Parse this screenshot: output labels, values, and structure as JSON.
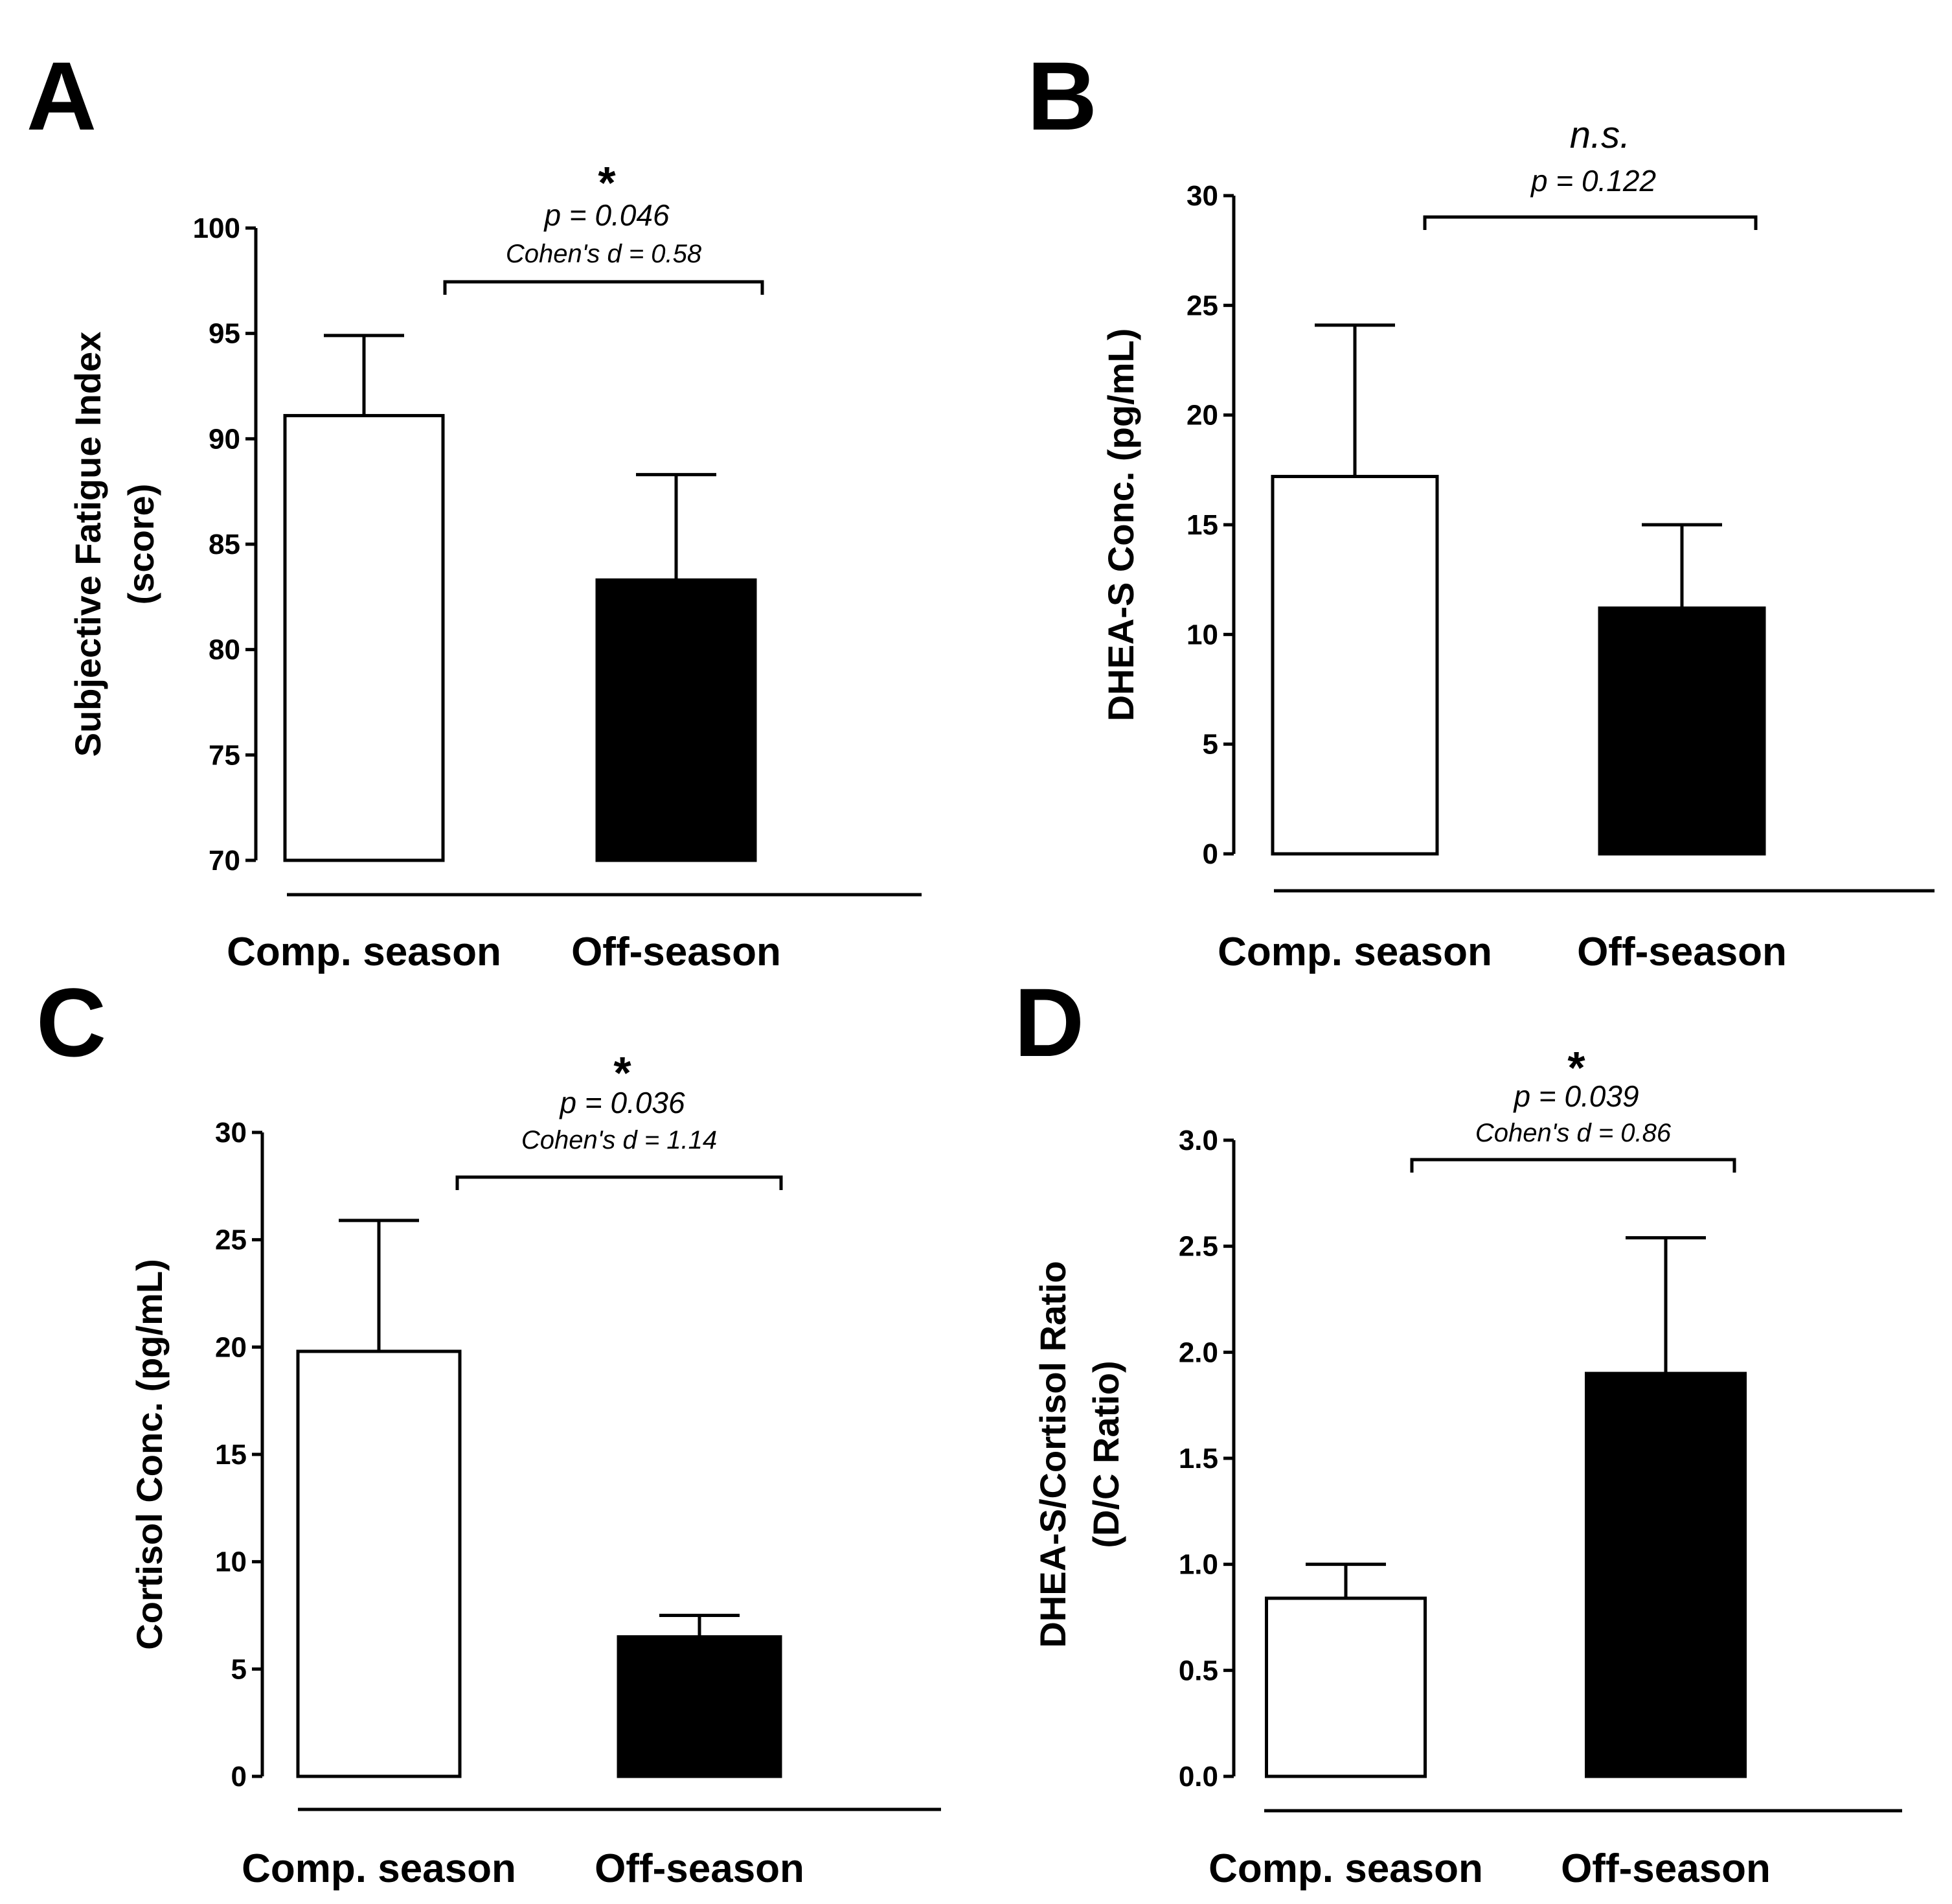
{
  "figure": {
    "colors": {
      "comp_bar": "#ffffff",
      "off_bar": "#000000",
      "ink": "#000000",
      "background": "#ffffff"
    }
  },
  "chart_data": [
    {
      "panel": "A",
      "type": "bar",
      "ylabel_lines": [
        "Subjective Fatigue Index",
        "(score)"
      ],
      "categories": [
        "Comp. season",
        "Off-season"
      ],
      "values": [
        91.1,
        83.3
      ],
      "errors": [
        3.8,
        5.0
      ],
      "ylim": [
        70,
        100
      ],
      "yticks": [
        70,
        75,
        80,
        85,
        90,
        95,
        100
      ],
      "tick_decimals": 0,
      "significance": {
        "marker": "*",
        "p": "p = 0.046",
        "effect": "Cohen's d = 0.58"
      }
    },
    {
      "panel": "B",
      "type": "bar",
      "ylabel_lines": [
        "DHEA-S Conc. (pg/mL)"
      ],
      "categories": [
        "Comp. season",
        "Off-season"
      ],
      "values": [
        17.2,
        11.2
      ],
      "errors": [
        6.9,
        3.8
      ],
      "ylim": [
        0,
        30
      ],
      "yticks": [
        0,
        5,
        10,
        15,
        20,
        25,
        30
      ],
      "tick_decimals": 0,
      "significance": {
        "marker": "n.s.",
        "p": "p = 0.122",
        "effect": ""
      }
    },
    {
      "panel": "C",
      "type": "bar",
      "ylabel_lines": [
        "Cortisol Conc. (pg/mL)"
      ],
      "categories": [
        "Comp. season",
        "Off-season"
      ],
      "values": [
        19.8,
        6.5
      ],
      "errors": [
        6.1,
        1.0
      ],
      "ylim": [
        0,
        30
      ],
      "yticks": [
        0,
        5,
        10,
        15,
        20,
        25,
        30
      ],
      "tick_decimals": 0,
      "significance": {
        "marker": "*",
        "p": "p = 0.036",
        "effect": "Cohen's d = 1.14"
      }
    },
    {
      "panel": "D",
      "type": "bar",
      "ylabel_lines": [
        "DHEA-S/Cortisol Ratio",
        "(D/C Ratio)"
      ],
      "categories": [
        "Comp. season",
        "Off-season"
      ],
      "values": [
        0.84,
        1.9
      ],
      "errors": [
        0.16,
        0.64
      ],
      "ylim": [
        0,
        3
      ],
      "yticks": [
        0.0,
        0.5,
        1.0,
        1.5,
        2.0,
        2.5,
        3.0
      ],
      "tick_decimals": 1,
      "significance": {
        "marker": "*",
        "p": "p = 0.039",
        "effect": "Cohen's d = 0.86"
      }
    }
  ]
}
